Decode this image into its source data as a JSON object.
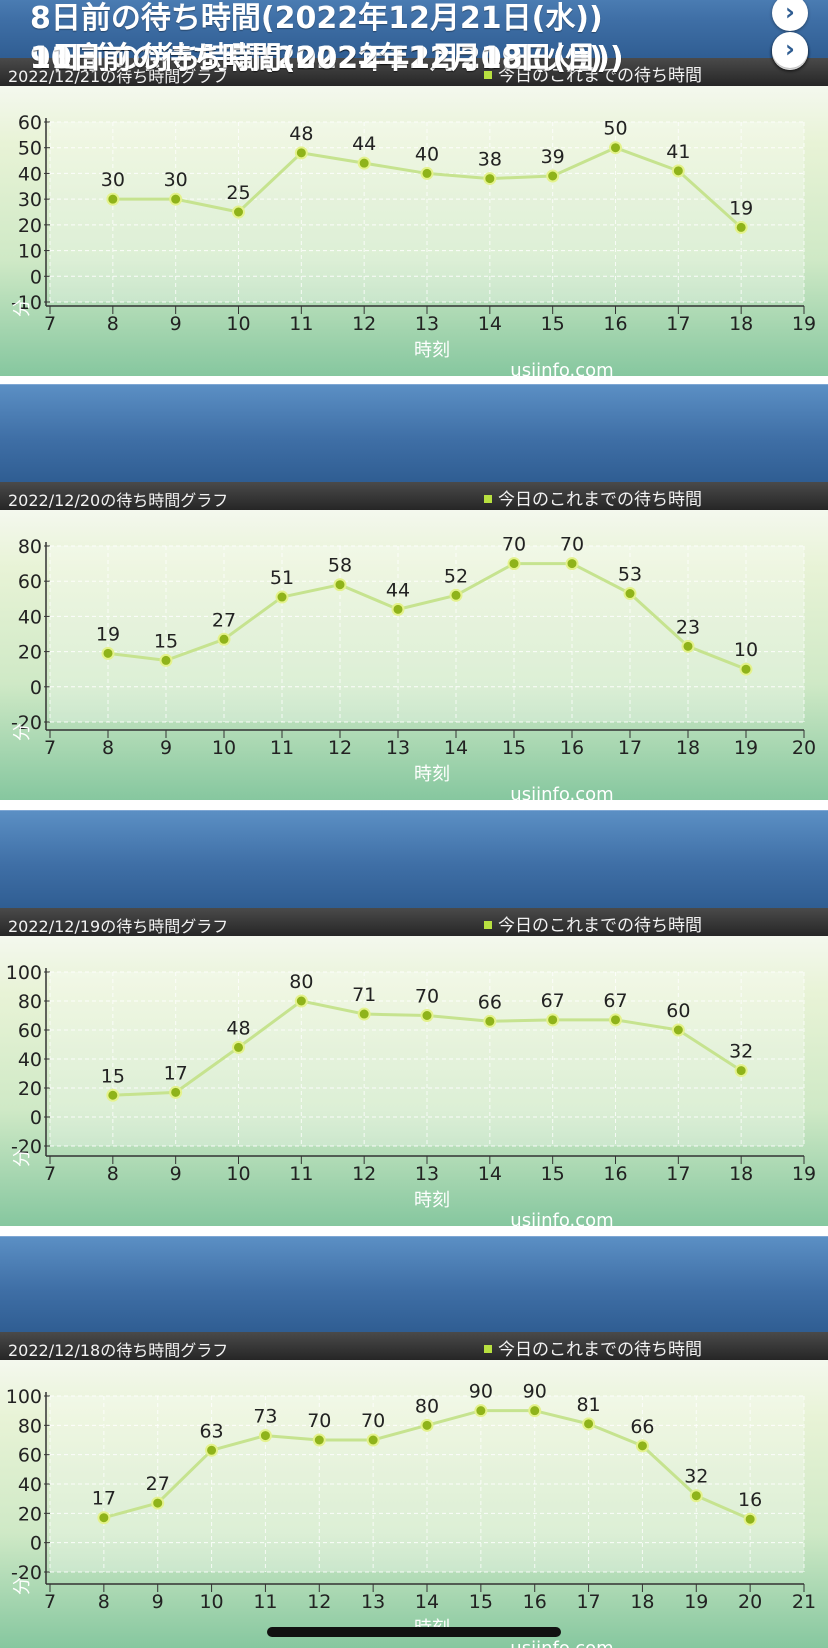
{
  "colors": {
    "line": "#c6e38f",
    "point": "#8fb31a",
    "header": "#3f6fa6"
  },
  "units": {
    "y_unit": "分",
    "x_label": "時刻",
    "watermark": "usjinfo.com"
  },
  "icons": {
    "chevron": "chevron-right-icon"
  },
  "charts": [
    {
      "header": "8日前の待ち時間(2022年12月21日(水))",
      "subtitle": "2022/12/21の待ち時間グラフ",
      "legend": "今日のこれまでの待ち時間"
    },
    {
      "header": "9日前の待ち時間(2022年12月20日(火))",
      "subtitle": "2022/12/20の待ち時間グラフ",
      "legend": "今日のこれまでの待ち時間"
    },
    {
      "header": "10日前の待ち時間(2022年12月19日(月))",
      "subtitle": "2022/12/19の待ち時間グラフ",
      "legend": "今日のこれまでの待ち時間"
    },
    {
      "header": "11日前の待ち時間(2022年12月18日(日))",
      "subtitle": "2022/12/18の待ち時間グラフ",
      "legend": "今日のこれまでの待ち時間"
    }
  ],
  "chart_data": [
    {
      "type": "line",
      "title": "2022/12/21の待ち時間グラフ",
      "xlabel": "時刻",
      "ylabel": "分",
      "xlim": [
        7,
        19
      ],
      "ylim": [
        -10,
        60
      ],
      "yticks": [
        -10,
        0,
        10,
        20,
        30,
        40,
        50,
        60
      ],
      "grid": true,
      "legend_position": "top-right",
      "series": [
        {
          "name": "今日のこれまでの待ち時間",
          "x": [
            8,
            9,
            10,
            11,
            12,
            13,
            14,
            15,
            16,
            17,
            18
          ],
          "values": [
            30,
            30,
            25,
            48,
            44,
            40,
            38,
            39,
            50,
            41,
            19
          ]
        }
      ]
    },
    {
      "type": "line",
      "title": "2022/12/20の待ち時間グラフ",
      "xlabel": "時刻",
      "ylabel": "分",
      "xlim": [
        7,
        20
      ],
      "ylim": [
        -20,
        80
      ],
      "yticks": [
        -20,
        0,
        20,
        40,
        60,
        80
      ],
      "grid": true,
      "legend_position": "top-right",
      "series": [
        {
          "name": "今日のこれまでの待ち時間",
          "x": [
            8,
            9,
            10,
            11,
            12,
            13,
            14,
            15,
            16,
            17,
            18,
            19
          ],
          "values": [
            19,
            15,
            27,
            51,
            58,
            44,
            52,
            70,
            70,
            53,
            23,
            10
          ]
        }
      ]
    },
    {
      "type": "line",
      "title": "2022/12/19の待ち時間グラフ",
      "xlabel": "時刻",
      "ylabel": "分",
      "xlim": [
        7,
        19
      ],
      "ylim": [
        -20,
        100
      ],
      "yticks": [
        -20,
        0,
        20,
        40,
        60,
        80,
        100
      ],
      "grid": true,
      "legend_position": "top-right",
      "series": [
        {
          "name": "今日のこれまでの待ち時間",
          "x": [
            8,
            9,
            10,
            11,
            12,
            13,
            14,
            15,
            16,
            17,
            18
          ],
          "values": [
            15,
            17,
            48,
            80,
            71,
            70,
            66,
            67,
            67,
            60,
            32
          ]
        }
      ]
    },
    {
      "type": "line",
      "title": "2022/12/18の待ち時間グラフ",
      "xlabel": "時刻",
      "ylabel": "分",
      "xlim": [
        7,
        21
      ],
      "ylim": [
        -20,
        100
      ],
      "yticks": [
        -20,
        0,
        20,
        40,
        60,
        80,
        100
      ],
      "grid": true,
      "legend_position": "top-right",
      "series": [
        {
          "name": "今日のこれまでの待ち時間",
          "x": [
            8,
            9,
            10,
            11,
            12,
            13,
            14,
            15,
            16,
            17,
            18,
            19,
            20
          ],
          "values": [
            17,
            27,
            63,
            73,
            70,
            70,
            80,
            90,
            90,
            81,
            66,
            32,
            16
          ]
        }
      ]
    }
  ]
}
